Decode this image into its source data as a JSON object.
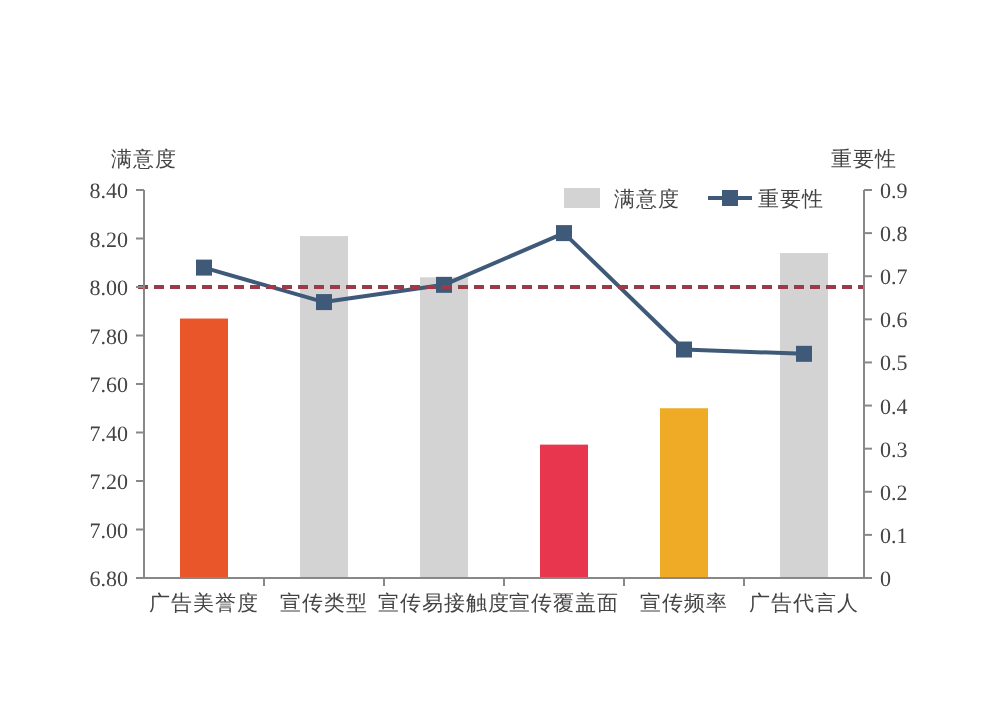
{
  "chart_data": {
    "type": "bar",
    "xlabel": null,
    "ylabel": "满意度",
    "y2label": "重要性",
    "categories": [
      "广告美誉度",
      "宣传类型",
      "宣传易接触度",
      "宣传覆盖面",
      "宣传频率",
      "广告代言人"
    ],
    "series": [
      {
        "name": "满意度",
        "color": "#d3d3d3",
        "colors": [
          "#e8562a",
          "#d3d3d3",
          "#d3d3d3",
          "#e8364f",
          "#efab25",
          "#d3d3d3"
        ],
        "values": [
          7.87,
          8.21,
          8.04,
          7.35,
          7.5,
          8.14
        ]
      },
      {
        "name": "重要性",
        "type": "line",
        "axis": "y2",
        "color": "#3f5a78",
        "marker": "square",
        "values": [
          0.72,
          0.64,
          0.68,
          0.8,
          0.53,
          0.52
        ]
      }
    ],
    "ylim": [
      6.8,
      8.4
    ],
    "yticks": [
      {
        "value": 6.8,
        "label": "6.80"
      },
      {
        "value": 7.0,
        "label": "7.00"
      },
      {
        "value": 7.2,
        "label": "7.20"
      },
      {
        "value": 7.4,
        "label": "7.40"
      },
      {
        "value": 7.6,
        "label": "7.60"
      },
      {
        "value": 7.8,
        "label": "7.80"
      },
      {
        "value": 8.0,
        "label": "8.00"
      },
      {
        "value": 8.2,
        "label": "8.20"
      },
      {
        "value": 8.4,
        "label": "8.40"
      }
    ],
    "y2lim": [
      0,
      0.9
    ],
    "y2ticks": [
      0,
      0.1,
      0.2,
      0.3,
      0.4,
      0.5,
      0.6,
      0.7,
      0.8,
      0.9
    ],
    "ref_lines": [
      {
        "axis": "y",
        "value": 8.0,
        "color": "#9c3a48",
        "line_style": "dashed"
      }
    ],
    "legend": "top right",
    "grid": false
  }
}
